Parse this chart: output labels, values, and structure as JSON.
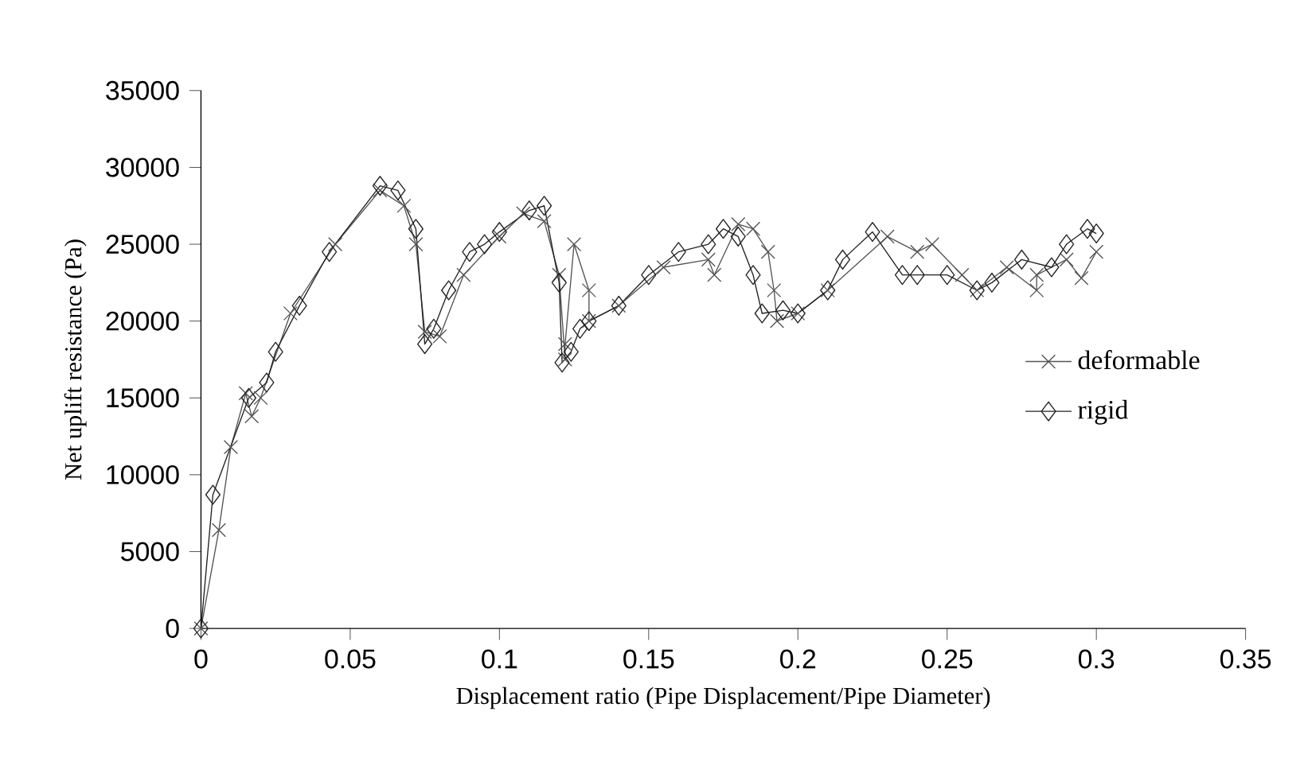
{
  "chart_data": {
    "type": "line",
    "xlabel": "Displacement ratio (Pipe Displacement/Pipe Diameter)",
    "ylabel": "Net uplift resistance (Pa)",
    "xlim": [
      0,
      0.35
    ],
    "xticks": [
      0,
      0.05,
      0.1,
      0.15,
      0.2,
      0.25,
      0.3,
      0.35
    ],
    "ylim": [
      0,
      35000
    ],
    "yticks": [
      0,
      5000,
      10000,
      15000,
      20000,
      25000,
      30000,
      35000
    ],
    "legend": "right",
    "grid": false,
    "line_style": "solid",
    "series": [
      {
        "name": "deformable",
        "color": "#555555",
        "marker": "cross",
        "x": [
          0,
          0.006,
          0.01,
          0.015,
          0.017,
          0.02,
          0.03,
          0.045,
          0.06,
          0.068,
          0.072,
          0.075,
          0.08,
          0.088,
          0.1,
          0.108,
          0.115,
          0.12,
          0.122,
          0.122,
          0.125,
          0.13,
          0.13,
          0.14,
          0.155,
          0.17,
          0.172,
          0.18,
          0.185,
          0.19,
          0.192,
          0.193,
          0.2,
          0.21,
          0.23,
          0.24,
          0.245,
          0.255,
          0.26,
          0.27,
          0.28,
          0.28,
          0.29,
          0.295,
          0.3
        ],
        "values": [
          0,
          6400,
          11800,
          15300,
          13800,
          15000,
          20500,
          25000,
          28500,
          27500,
          25000,
          19300,
          19000,
          23000,
          25500,
          27000,
          26500,
          23000,
          17500,
          18500,
          25000,
          22000,
          20000,
          21000,
          23500,
          24000,
          23000,
          26300,
          26000,
          24500,
          22000,
          20000,
          20500,
          22000,
          25500,
          24500,
          25000,
          23000,
          22000,
          23500,
          22000,
          23000,
          24000,
          22800,
          24500
        ]
      },
      {
        "name": "rigid",
        "color": "#222222",
        "marker": "diamond",
        "x": [
          0,
          0.004,
          0.016,
          0.022,
          0.025,
          0.033,
          0.043,
          0.06,
          0.066,
          0.072,
          0.075,
          0.078,
          0.083,
          0.09,
          0.095,
          0.1,
          0.11,
          0.115,
          0.12,
          0.121,
          0.124,
          0.127,
          0.13,
          0.14,
          0.15,
          0.16,
          0.17,
          0.175,
          0.18,
          0.185,
          0.188,
          0.195,
          0.2,
          0.21,
          0.215,
          0.225,
          0.235,
          0.24,
          0.25,
          0.26,
          0.265,
          0.275,
          0.285,
          0.29,
          0.297,
          0.3
        ],
        "values": [
          0,
          8700,
          15000,
          16000,
          18000,
          21000,
          24500,
          28800,
          28500,
          26000,
          18500,
          19500,
          22000,
          24500,
          25000,
          25800,
          27200,
          27500,
          22500,
          17300,
          18000,
          19500,
          20000,
          21000,
          23000,
          24500,
          25000,
          26000,
          25500,
          23000,
          20500,
          20700,
          20500,
          22000,
          24000,
          25800,
          23000,
          23000,
          23000,
          22000,
          22500,
          24000,
          23500,
          25000,
          26000,
          25700
        ]
      }
    ]
  }
}
